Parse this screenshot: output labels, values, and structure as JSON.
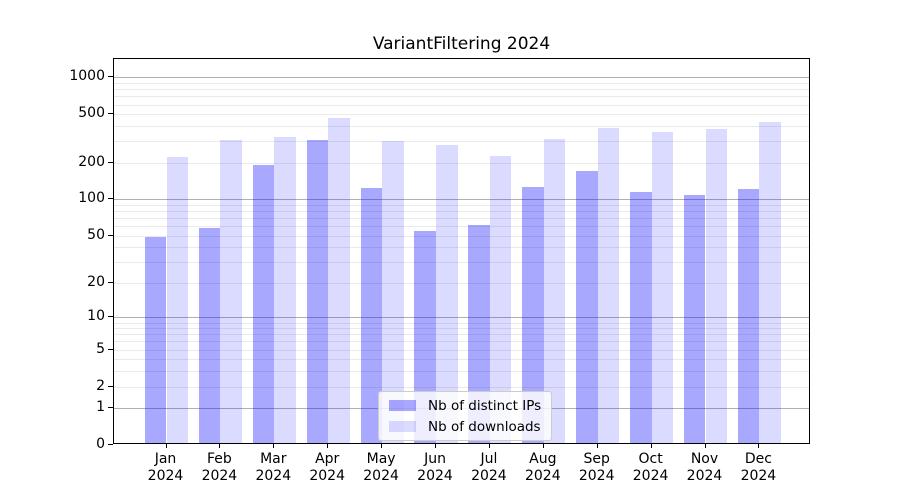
{
  "title": "VariantFiltering 2024",
  "legend": {
    "items": [
      {
        "label": "Nb of distinct IPs"
      },
      {
        "label": "Nb of downloads"
      }
    ]
  },
  "colors": {
    "distinct_ips_bar": "rgba(0,0,255,0.34)",
    "downloads_bar": "rgba(0,0,255,0.14)",
    "major_gridline": "#b0b0b0",
    "minor_gridline": "#eaeaea",
    "axis": "#000000"
  },
  "chart_data": {
    "type": "bar",
    "title": "VariantFiltering 2024",
    "categories": [
      "Jan 2024",
      "Feb 2024",
      "Mar 2024",
      "Apr 2024",
      "May 2024",
      "Jun 2024",
      "Jul 2024",
      "Aug 2024",
      "Sep 2024",
      "Oct 2024",
      "Nov 2024",
      "Dec 2024"
    ],
    "series": [
      {
        "name": "Nb of distinct IPs",
        "color": "rgba(0,0,255,0.34)",
        "values": [
          47,
          56,
          184,
          298,
          120,
          53,
          59,
          122,
          164,
          111,
          104,
          118
        ]
      },
      {
        "name": "Nb of downloads",
        "color": "rgba(0,0,255,0.14)",
        "values": [
          215,
          298,
          311,
          450,
          289,
          268,
          220,
          300,
          375,
          346,
          368,
          415
        ]
      }
    ],
    "xlabel": "",
    "ylabel": "",
    "y_scale": "log10(1+y)",
    "y_ticks": [
      0,
      1,
      2,
      5,
      10,
      20,
      50,
      100,
      200,
      500,
      1000
    ],
    "ylim": [
      0,
      1400
    ],
    "grid": true,
    "legend_position": "lower center inside plot"
  }
}
